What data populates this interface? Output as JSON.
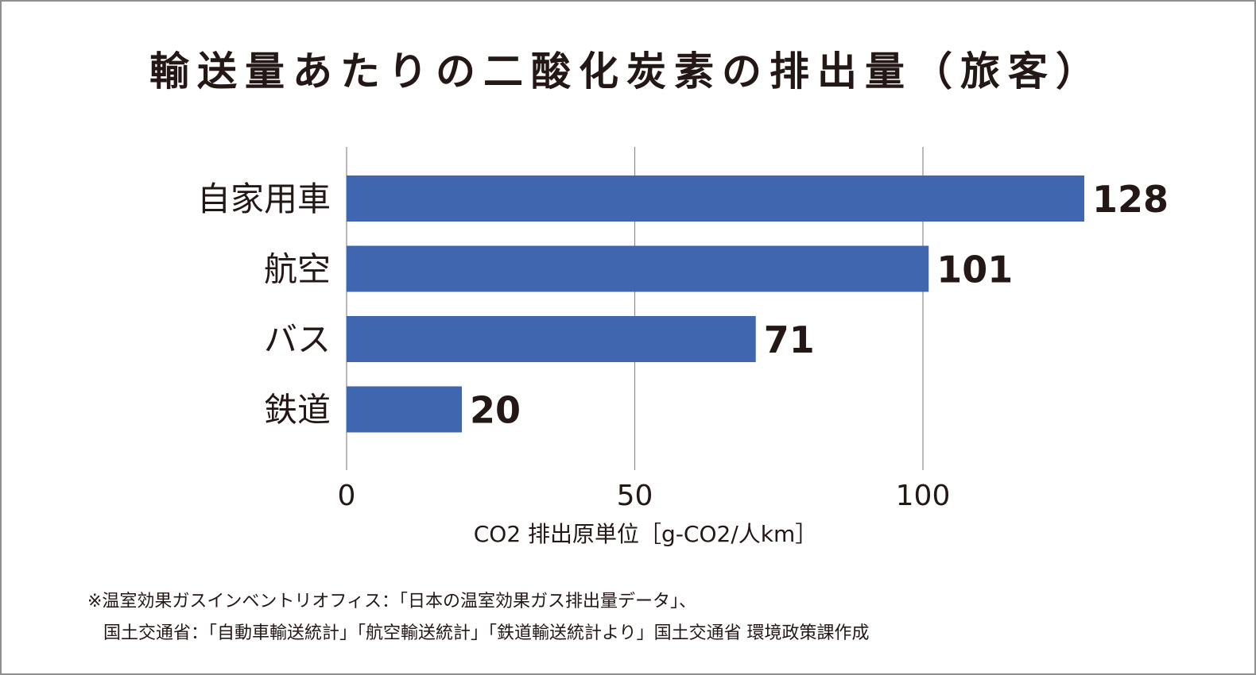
{
  "title": "輸送量あたりの二酸化炭素の排出量（旅客）",
  "chart_data": {
    "type": "bar",
    "orientation": "horizontal",
    "categories": [
      "自家用車",
      "航空",
      "バス",
      "鉄道"
    ],
    "values": [
      128,
      101,
      71,
      20
    ],
    "data_labels": [
      "128",
      "101",
      "71",
      "20"
    ],
    "xlabel": "CO2 排出原単位［g-CO2/人km］",
    "xlim": [
      0,
      140
    ],
    "xticks": [
      0,
      50,
      100
    ],
    "grid": true,
    "bar_color": "#3f66ae"
  },
  "notes": {
    "line1": "※温室効果ガスインベントリオフィス：「日本の温室効果ガス排出量データ」、",
    "line2": "国土交通省：「自動車輸送統計」「航空輸送統計」「鉄道輸送統計より」国土交通省 環境政策課作成"
  }
}
